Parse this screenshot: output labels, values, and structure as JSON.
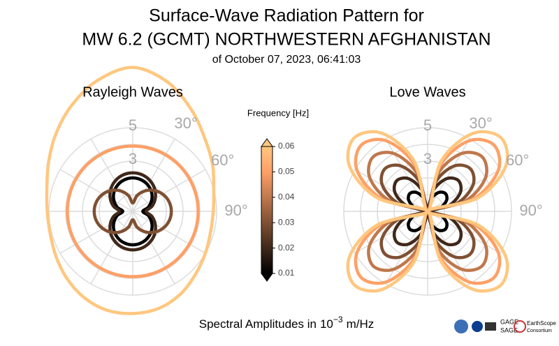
{
  "title": [
    "Surface-Wave Radiation Pattern for",
    "MW 6.2 (GCMT) NORTHWESTERN AFGHANISTAN",
    "of October 07, 2023, 06:41:03"
  ],
  "amplitude_label": [
    "Spectral Amplitudes in",
    "10",
    "−3",
    "m/Hz"
  ],
  "logos": [
    "GAGE",
    "SAGE",
    "EarthScope",
    "Consortium"
  ],
  "colorbar": {
    "label": "Frequency [Hz]",
    "lim": [
      0.01,
      0.06
    ],
    "ticks": [
      0.01,
      0.02,
      0.03,
      0.04,
      0.05,
      0.06
    ],
    "cmap": [
      {
        "at": 0,
        "color": "#000000"
      },
      {
        "at": 0.8,
        "color": "#ffa066"
      },
      {
        "at": 1,
        "color": "#ffc77f"
      }
    ]
  },
  "chart_data": [
    {
      "type": "polar",
      "title": "Rayleigh Waves",
      "theta_zero": "N",
      "theta_direction": "clockwise",
      "theta": [
        0,
        15,
        30,
        45,
        60,
        75,
        90,
        105,
        120,
        135,
        150,
        165,
        180,
        195,
        210,
        225,
        240,
        255,
        270,
        285,
        300,
        315,
        330,
        345
      ],
      "rlim": [
        0,
        5
      ],
      "rticks": [
        3,
        5
      ],
      "rgrid": [
        1,
        2,
        3,
        4,
        5
      ],
      "thetagrid": [
        0,
        30,
        60,
        90,
        120,
        150,
        180,
        210,
        240,
        270,
        300,
        330
      ],
      "thetaticks": [
        {
          "value": 30,
          "label": "30°"
        },
        {
          "value": 60,
          "label": "60°"
        },
        {
          "value": 90,
          "label": "90°"
        }
      ],
      "series": [
        {
          "frequency": 0.01,
          "values": [
            2.0,
            1.95,
            1.81,
            1.59,
            1.3,
            0.96,
            0.6,
            0.96,
            1.3,
            1.59,
            1.81,
            1.95,
            2.0,
            1.95,
            1.81,
            1.59,
            1.3,
            0.96,
            0.6,
            0.96,
            1.3,
            1.59,
            1.81,
            1.95
          ]
        },
        {
          "frequency": 0.02,
          "values": [
            2.3,
            2.25,
            2.1,
            1.86,
            1.55,
            1.19,
            0.8,
            1.19,
            1.55,
            1.86,
            2.1,
            2.25,
            2.3,
            2.25,
            2.1,
            1.86,
            1.55,
            1.19,
            0.8,
            1.19,
            1.55,
            1.86,
            2.1,
            2.25
          ]
        },
        {
          "frequency": 0.03,
          "values": [
            0.5,
            0.97,
            1.4,
            1.77,
            2.06,
            2.24,
            2.3,
            2.24,
            2.06,
            1.77,
            1.4,
            0.97,
            0.5,
            0.97,
            1.4,
            1.77,
            2.06,
            2.24,
            2.3,
            2.24,
            2.06,
            1.77,
            1.4,
            0.97
          ]
        },
        {
          "frequency": 0.05,
          "values": [
            3.9,
            3.9,
            3.9,
            3.9,
            3.9,
            3.9,
            3.9,
            3.9,
            3.9,
            3.9,
            3.9,
            3.9,
            3.9,
            3.9,
            3.9,
            3.9,
            3.9,
            3.9,
            3.9,
            3.9,
            3.9,
            3.9,
            3.9,
            3.9
          ]
        },
        {
          "frequency": 0.06,
          "values": [
            8.6,
            8.0,
            7.0,
            6.1,
            5.5,
            5.0,
            4.8,
            4.8,
            5.0,
            5.3,
            5.7,
            6.0,
            6.1,
            6.1,
            5.9,
            5.6,
            5.3,
            5.1,
            5.1,
            5.3,
            5.8,
            6.5,
            7.3,
            8.1
          ]
        }
      ]
    },
    {
      "type": "polar",
      "title": "Love Waves",
      "theta_zero": "N",
      "theta_direction": "clockwise",
      "theta": [
        0,
        15,
        30,
        45,
        60,
        75,
        90,
        105,
        120,
        135,
        150,
        165,
        180,
        195,
        210,
        225,
        240,
        255,
        270,
        285,
        300,
        315,
        330,
        345
      ],
      "rlim": [
        0,
        5
      ],
      "rticks": [
        3,
        5
      ],
      "rgrid": [
        1,
        2,
        3,
        4,
        5
      ],
      "thetagrid": [
        0,
        30,
        60,
        90,
        120,
        150,
        180,
        210,
        240,
        270,
        300,
        330
      ],
      "thetaticks": [
        {
          "value": 30,
          "label": "30°"
        },
        {
          "value": 60,
          "label": "60°"
        },
        {
          "value": 90,
          "label": "90°"
        }
      ],
      "series": [
        {
          "frequency": 0.01,
          "values": [
            0,
            0.75,
            1.3,
            1.5,
            1.3,
            0.75,
            0,
            0.75,
            1.3,
            1.5,
            1.3,
            0.75,
            0,
            0.75,
            1.3,
            1.5,
            1.3,
            0.75,
            0,
            0.75,
            1.3,
            1.5,
            1.3,
            0.75
          ]
        },
        {
          "frequency": 0.02,
          "values": [
            0,
            1.3,
            2.25,
            2.6,
            2.25,
            1.3,
            0,
            1.3,
            2.25,
            2.6,
            2.25,
            1.3,
            0,
            1.3,
            2.25,
            2.6,
            2.25,
            1.3,
            0,
            1.3,
            2.25,
            2.6,
            2.25,
            1.3
          ]
        },
        {
          "frequency": 0.03,
          "values": [
            0,
            1.8,
            3.12,
            3.6,
            3.12,
            1.8,
            0,
            1.8,
            3.12,
            3.6,
            3.12,
            1.8,
            0,
            1.8,
            3.12,
            3.6,
            3.12,
            1.8,
            0,
            1.8,
            3.12,
            3.6,
            3.12,
            1.8
          ]
        },
        {
          "frequency": 0.04,
          "values": [
            0,
            2.3,
            3.98,
            4.6,
            3.98,
            2.3,
            0,
            2.3,
            3.98,
            4.6,
            3.98,
            2.3,
            0,
            2.3,
            3.98,
            4.6,
            3.98,
            2.3,
            0,
            2.3,
            3.98,
            4.6,
            3.98,
            2.3
          ]
        },
        {
          "frequency": 0.05,
          "values": [
            0,
            2.8,
            4.85,
            5.6,
            4.85,
            2.8,
            0,
            2.8,
            4.85,
            5.6,
            4.85,
            2.8,
            0,
            2.8,
            4.85,
            5.6,
            4.85,
            2.8,
            0,
            2.8,
            4.85,
            5.6,
            4.85,
            2.8
          ]
        },
        {
          "frequency": 0.06,
          "values": [
            0,
            3.1,
            5.37,
            6.2,
            5.37,
            3.1,
            0,
            3.1,
            5.37,
            6.2,
            5.37,
            3.1,
            0,
            3.1,
            5.37,
            6.2,
            5.37,
            3.1,
            0,
            3.1,
            5.37,
            6.2,
            5.37,
            3.1
          ]
        }
      ]
    }
  ]
}
